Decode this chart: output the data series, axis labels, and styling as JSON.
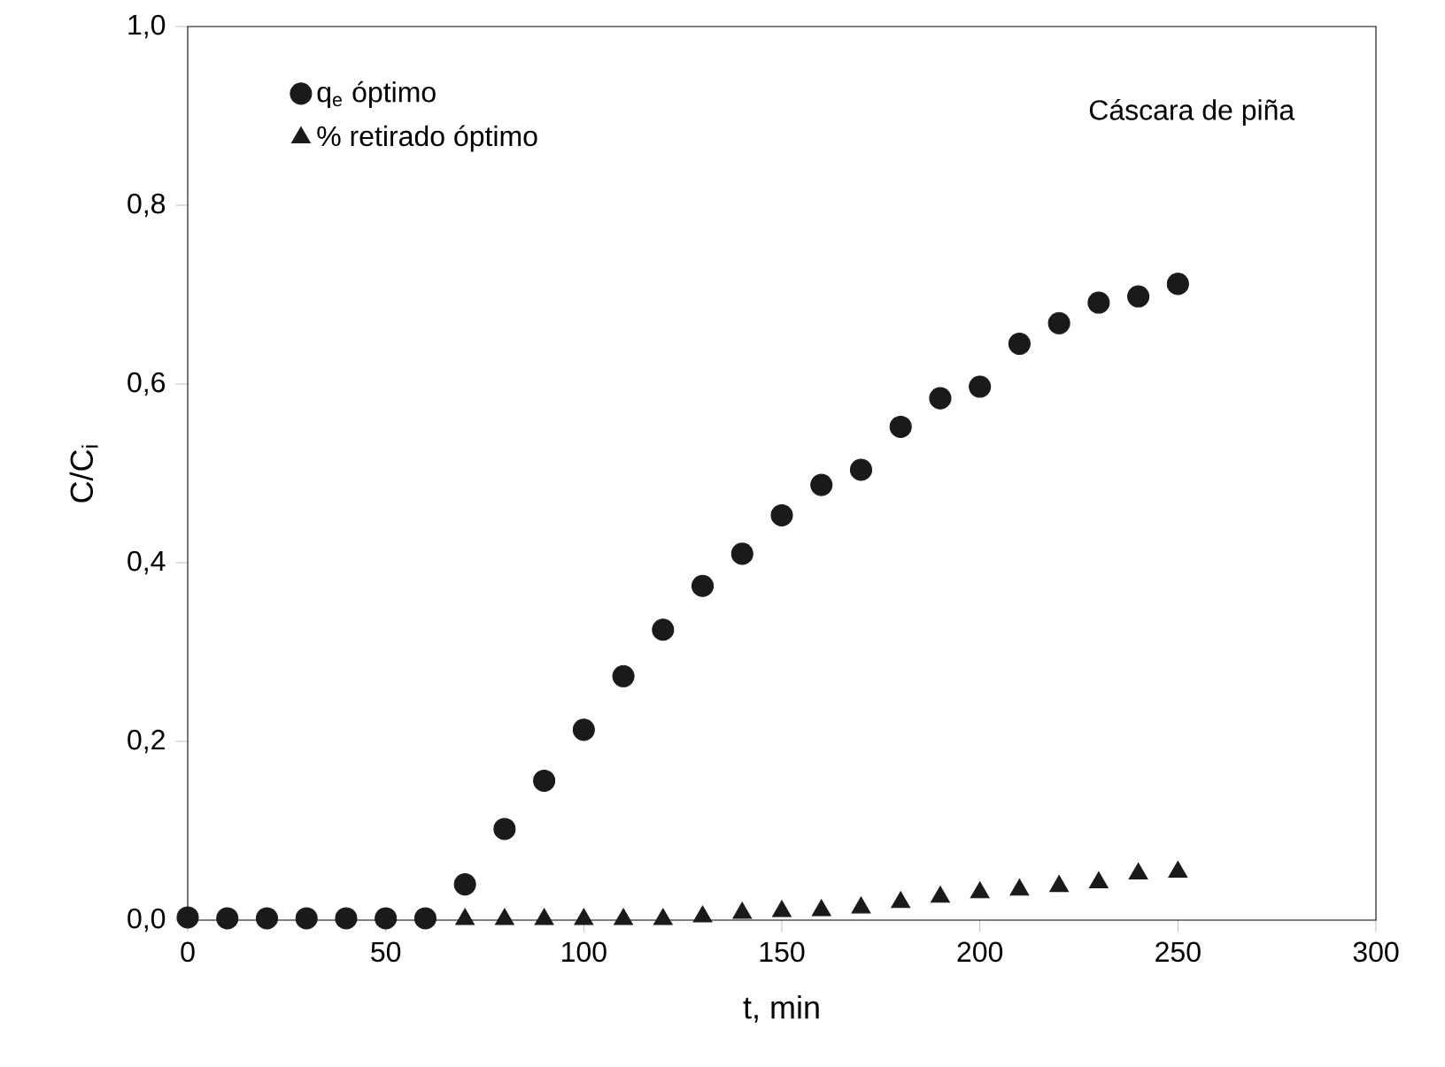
{
  "chart_data": {
    "type": "scatter",
    "xlabel": "t, min",
    "ylabel": "C/C$_{i}$",
    "annotations": [
      "Cáscara de piña"
    ],
    "x": [
      0,
      10,
      20,
      30,
      40,
      50,
      60,
      70,
      80,
      90,
      100,
      110,
      120,
      130,
      140,
      150,
      160,
      170,
      180,
      190,
      200,
      210,
      220,
      230,
      240,
      250
    ],
    "series": [
      {
        "name": "q$_{e}$ óptimo",
        "color": "#1a1a1a",
        "marker": "circle",
        "values": [
          0.003,
          0.002,
          0.002,
          0.002,
          0.002,
          0.002,
          0.002,
          0.04,
          0.102,
          0.156,
          0.213,
          0.273,
          0.325,
          0.374,
          0.41,
          0.453,
          0.487,
          0.504,
          0.552,
          0.584,
          0.597,
          0.645,
          0.668,
          0.691,
          0.698,
          0.712
        ]
      },
      {
        "name": "% retirado óptimo",
        "color": "#1a1a1a",
        "marker": "triangle",
        "values": [
          null,
          null,
          null,
          null,
          null,
          null,
          null,
          0.001,
          0.001,
          0.001,
          0.001,
          0.001,
          0.001,
          0.004,
          0.008,
          0.01,
          0.011,
          0.014,
          0.02,
          0.026,
          0.031,
          0.034,
          0.038,
          0.042,
          0.052,
          0.054
        ]
      }
    ],
    "xlim": [
      0,
      300
    ],
    "xticks": [
      0,
      50,
      100,
      150,
      200,
      250,
      300
    ],
    "ylim": [
      0,
      1
    ],
    "yticks": [
      {
        "value": 0,
        "label": "0,0"
      },
      {
        "value": 0.2,
        "label": "0,2"
      },
      {
        "value": 0.4,
        "label": "0,4"
      },
      {
        "value": 0.6,
        "label": "0,6"
      },
      {
        "value": 0.8,
        "label": "0,8"
      },
      {
        "value": 1,
        "label": "1,0"
      }
    ],
    "legend": "top left",
    "grid": false
  }
}
